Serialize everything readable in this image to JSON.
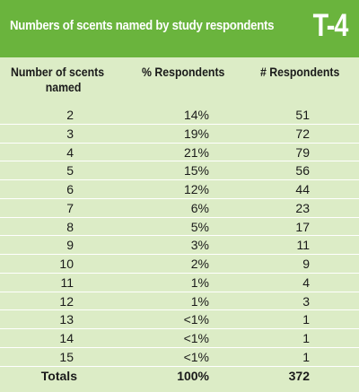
{
  "header": {
    "title": "Numbers of scents named by study respondents",
    "code": "T-4",
    "background": "#6ab43d"
  },
  "table": {
    "columns": {
      "scents_line1": "Number of scents",
      "scents_line2": "named",
      "percent": "% Respondents",
      "count": "# Respondents"
    },
    "rows": [
      {
        "scents": "2",
        "percent": "14%",
        "count": "51"
      },
      {
        "scents": "3",
        "percent": "19%",
        "count": "72"
      },
      {
        "scents": "4",
        "percent": "21%",
        "count": "79"
      },
      {
        "scents": "5",
        "percent": "15%",
        "count": "56"
      },
      {
        "scents": "6",
        "percent": "12%",
        "count": "44"
      },
      {
        "scents": "7",
        "percent": "6%",
        "count": "23"
      },
      {
        "scents": "8",
        "percent": "5%",
        "count": "17"
      },
      {
        "scents": "9",
        "percent": "3%",
        "count": "11"
      },
      {
        "scents": "10",
        "percent": "2%",
        "count": "9"
      },
      {
        "scents": "11",
        "percent": "1%",
        "count": "4"
      },
      {
        "scents": "12",
        "percent": "1%",
        "count": "3"
      },
      {
        "scents": "13",
        "percent": "<1%",
        "count": "1"
      },
      {
        "scents": "14",
        "percent": "<1%",
        "count": "1"
      },
      {
        "scents": "15",
        "percent": "<1%",
        "count": "1"
      }
    ],
    "totals": {
      "label": "Totals",
      "percent": "100%",
      "count": "372"
    }
  }
}
